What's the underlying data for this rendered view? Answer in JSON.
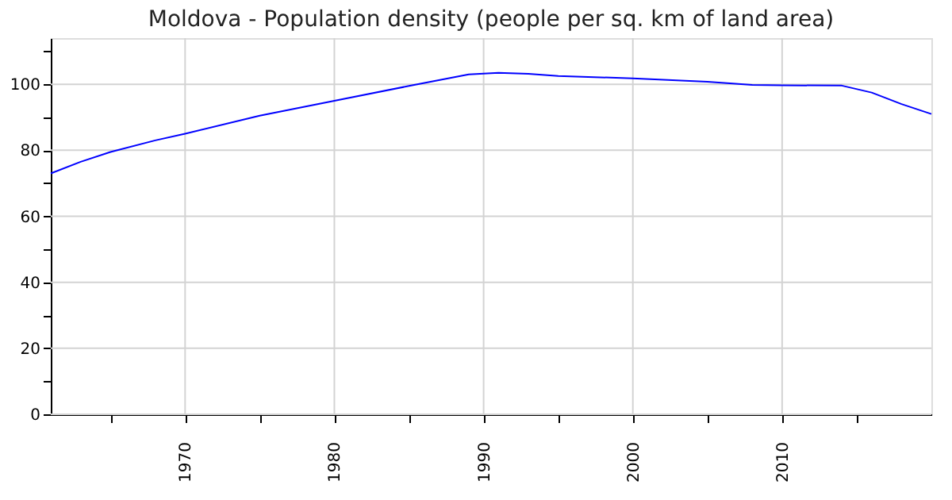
{
  "chart_data": {
    "type": "line",
    "title": "Moldova - Population density (people per sq. km of land area)",
    "x": [
      1961,
      1963,
      1965,
      1968,
      1970,
      1975,
      1980,
      1985,
      1989,
      1991,
      1993,
      1995,
      2000,
      2005,
      2008,
      2010,
      2014,
      2016,
      2018,
      2020
    ],
    "series": [
      {
        "color": "#0000ff",
        "values": [
          73,
          76.5,
          79.5,
          83,
          85,
          90.5,
          95,
          99.5,
          103,
          103.5,
          103.2,
          102.5,
          101.8,
          100.8,
          99.8,
          99.7,
          99.6,
          97.5,
          94,
          91
        ]
      }
    ],
    "xlim": [
      1961,
      2020
    ],
    "ylim": [
      0,
      114
    ],
    "xticks": [
      1970,
      {
        "value": 1965,
        "label": null
      },
      {
        "value": 1975,
        "label": null
      },
      1980,
      {
        "value": 1985,
        "label": null
      },
      1990,
      {
        "value": 1995,
        "label": null
      },
      2000,
      {
        "value": 2005,
        "label": null
      },
      2010,
      {
        "value": 2015,
        "label": null
      }
    ],
    "yticks": [
      0,
      {
        "value": 10,
        "label": null
      },
      20,
      {
        "value": 30,
        "label": null
      },
      40,
      {
        "value": 50,
        "label": null
      },
      60,
      {
        "value": 70,
        "label": null
      },
      80,
      {
        "value": 90,
        "label": null
      },
      100,
      {
        "value": 110,
        "label": null
      }
    ],
    "grid": true,
    "marker": "none",
    "line_style": "solid"
  }
}
